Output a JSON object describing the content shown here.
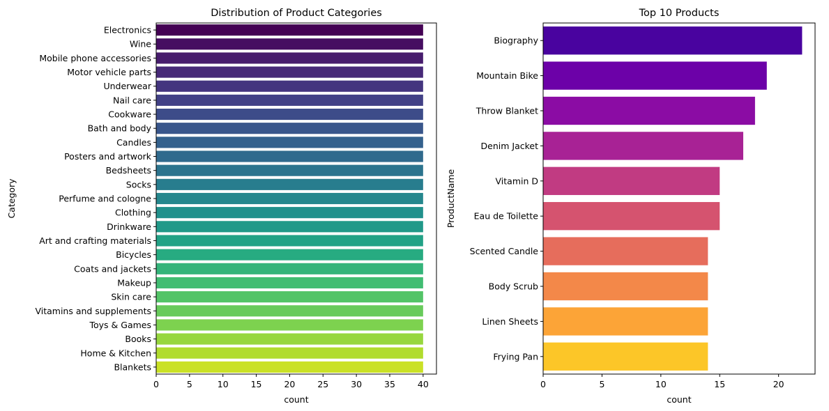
{
  "chart_data": [
    {
      "type": "bar",
      "orientation": "horizontal",
      "title": "Distribution of Product Categories",
      "xlabel": "count",
      "ylabel": "Category",
      "xlim": [
        0,
        42
      ],
      "xticks": [
        0,
        5,
        10,
        15,
        20,
        25,
        30,
        35,
        40
      ],
      "categories": [
        "Electronics",
        "Wine",
        "Mobile phone accessories",
        "Motor vehicle parts",
        "Underwear",
        "Nail care",
        "Cookware",
        "Bath and body",
        "Candles",
        "Posters and artwork",
        "Bedsheets",
        "Socks",
        "Perfume and cologne",
        "Clothing",
        "Drinkware",
        "Art and crafting materials",
        "Bicycles",
        "Coats and jackets",
        "Makeup",
        "Skin care",
        "Vitamins and supplements",
        "Toys & Games",
        "Books",
        "Home & Kitchen",
        "Blankets"
      ],
      "values": [
        40,
        40,
        40,
        40,
        40,
        40,
        40,
        40,
        40,
        40,
        40,
        40,
        40,
        40,
        40,
        40,
        40,
        40,
        40,
        40,
        40,
        40,
        40,
        40,
        40
      ],
      "palette": "viridis",
      "grid": false,
      "legend": "none"
    },
    {
      "type": "bar",
      "orientation": "horizontal",
      "title": "Top 10 Products",
      "xlabel": "count",
      "ylabel": "ProductName",
      "xlim": [
        0,
        23.1
      ],
      "xticks": [
        0,
        5,
        10,
        15,
        20
      ],
      "categories": [
        "Biography",
        "Mountain Bike",
        "Throw Blanket",
        "Denim Jacket",
        "Vitamin D",
        "Eau de Toilette",
        "Scented Candle",
        "Body Scrub",
        "Linen Sheets",
        "Frying Pan"
      ],
      "values": [
        22,
        19,
        18,
        17,
        15,
        15,
        14,
        14,
        14,
        14
      ],
      "palette": "plasma",
      "grid": false,
      "legend": "none"
    }
  ]
}
